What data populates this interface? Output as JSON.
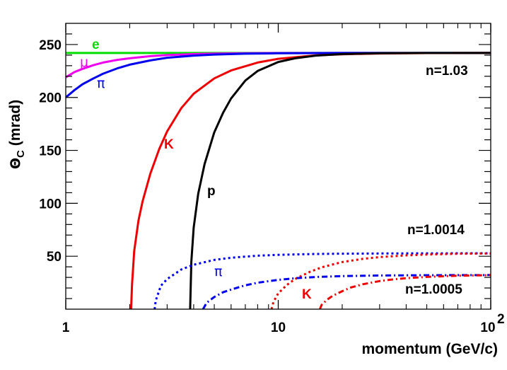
{
  "chart_data": {
    "type": "line",
    "title": "",
    "xlabel": "momentum (GeV/c)",
    "ylabel_main": "Θ",
    "ylabel_sub": "C",
    "ylabel_unit": " (mrad)",
    "x_scale": "log",
    "xlim": [
      1,
      100
    ],
    "ylim": [
      0,
      270
    ],
    "grid": false,
    "legend": "none",
    "x_ticks": [
      {
        "value": 1,
        "label": "1"
      },
      {
        "value": 10,
        "label": "10"
      },
      {
        "value": 100,
        "label": "10",
        "sup": "2"
      }
    ],
    "y_ticks": [
      {
        "value": 50,
        "label": "50"
      },
      {
        "value": 100,
        "label": "100"
      },
      {
        "value": 150,
        "label": "150"
      },
      {
        "value": 200,
        "label": "200"
      },
      {
        "value": 250,
        "label": "250"
      }
    ],
    "series": [
      {
        "id": "e-1.03",
        "color": "#00dd00",
        "dash": "solid",
        "x": [
          1,
          2,
          5,
          10,
          100
        ],
        "y": [
          242,
          242,
          242,
          242,
          242
        ]
      },
      {
        "id": "mu-1.03",
        "color": "#ee00ee",
        "dash": "solid",
        "x": [
          1,
          1.1,
          1.2,
          1.35,
          1.5,
          1.75,
          2,
          2.5,
          3,
          4,
          5,
          7,
          10,
          20,
          50,
          100
        ],
        "y": [
          219,
          224,
          227,
          230.5,
          233,
          235.5,
          237,
          239,
          240,
          241,
          241.4,
          241.8,
          241.9,
          242,
          242,
          242
        ]
      },
      {
        "id": "pi-1.03",
        "color": "#0000ee",
        "dash": "solid",
        "x": [
          1,
          1.1,
          1.2,
          1.35,
          1.5,
          1.75,
          2,
          2.5,
          3,
          4,
          5,
          7,
          10,
          20,
          50,
          100
        ],
        "y": [
          200,
          207,
          212.5,
          218,
          222.5,
          227.5,
          231,
          235,
          237.5,
          239.5,
          240.5,
          241.3,
          241.7,
          242,
          242,
          242
        ]
      },
      {
        "id": "K-1.03",
        "color": "#ee0000",
        "dash": "solid",
        "x": [
          2.03,
          2.05,
          2.1,
          2.2,
          2.3,
          2.5,
          2.75,
          3,
          3.5,
          4,
          5,
          6,
          8,
          10,
          15,
          20,
          30,
          50,
          100
        ],
        "y": [
          0,
          23,
          55,
          84,
          102,
          128,
          151,
          168,
          190,
          203.5,
          218,
          225.5,
          233,
          236.5,
          239.7,
          240.8,
          241.5,
          241.9,
          242
        ]
      },
      {
        "id": "p-1.03",
        "color": "#000000",
        "dash": "solid",
        "x": [
          3.85,
          3.9,
          4,
          4.2,
          4.5,
          5,
          5.5,
          6,
          7,
          8,
          10,
          12,
          15,
          20,
          30,
          50,
          100
        ],
        "y": [
          0,
          45,
          77,
          109,
          137,
          167,
          185.5,
          199,
          216,
          225,
          233.5,
          237,
          239.5,
          241,
          241.8,
          242,
          242
        ]
      },
      {
        "id": "pi-1.0014",
        "color": "#0000ee",
        "dash": "dotted",
        "x": [
          2.62,
          2.65,
          2.8,
          3,
          3.5,
          4,
          5,
          6,
          8,
          10,
          15,
          20,
          30,
          50,
          100
        ],
        "y": [
          0,
          8,
          22,
          28.5,
          37.5,
          42,
          46.5,
          48.6,
          50.5,
          51.3,
          52.1,
          52.4,
          52.6,
          52.7,
          52.8
        ]
      },
      {
        "id": "K-1.0014",
        "color": "#ee0000",
        "dash": "dotted",
        "x": [
          9.3,
          9.5,
          10,
          11,
          12,
          14,
          16,
          20,
          25,
          30,
          40,
          50,
          70,
          100
        ],
        "y": [
          0,
          7,
          15,
          23,
          28.5,
          35,
          39.5,
          44.5,
          47.5,
          49.2,
          50.8,
          51.6,
          52.3,
          52.6
        ]
      },
      {
        "id": "pi-1.0005",
        "color": "#0000ee",
        "dash": "dashdot",
        "x": [
          4.43,
          4.6,
          5,
          5.5,
          6,
          7,
          8,
          10,
          12,
          15,
          20,
          30,
          50,
          100
        ],
        "y": [
          0,
          6,
          11.5,
          16,
          18.5,
          22.5,
          25,
          27.7,
          29.2,
          30.4,
          31.2,
          31.8,
          32.1,
          32.2
        ]
      },
      {
        "id": "K-1.0005",
        "color": "#ee0000",
        "dash": "dashdot",
        "x": [
          15.7,
          16,
          17,
          18,
          20,
          22,
          25,
          30,
          35,
          40,
          50,
          70,
          100
        ],
        "y": [
          0,
          4,
          9,
          12.5,
          17,
          20.5,
          23.5,
          26.5,
          28.2,
          29.3,
          30.5,
          31.6,
          32.1
        ]
      }
    ],
    "annotations": [
      {
        "text": "e",
        "color": "#00dd00"
      },
      {
        "text": "μ",
        "color": "#ee00ee",
        "symbol": true
      },
      {
        "text": "π",
        "color": "#0000ee",
        "symbol": true
      },
      {
        "text": "K",
        "color": "#ee0000"
      },
      {
        "text": "p",
        "color": "#000000"
      },
      {
        "text": "π",
        "color": "#0000ee",
        "symbol": true
      },
      {
        "text": "K",
        "color": "#ee0000"
      },
      {
        "text": "n=1.03",
        "color": "#000000"
      },
      {
        "text": "n=1.0014",
        "color": "#000000"
      },
      {
        "text": "n=1.0005",
        "color": "#000000"
      }
    ]
  }
}
